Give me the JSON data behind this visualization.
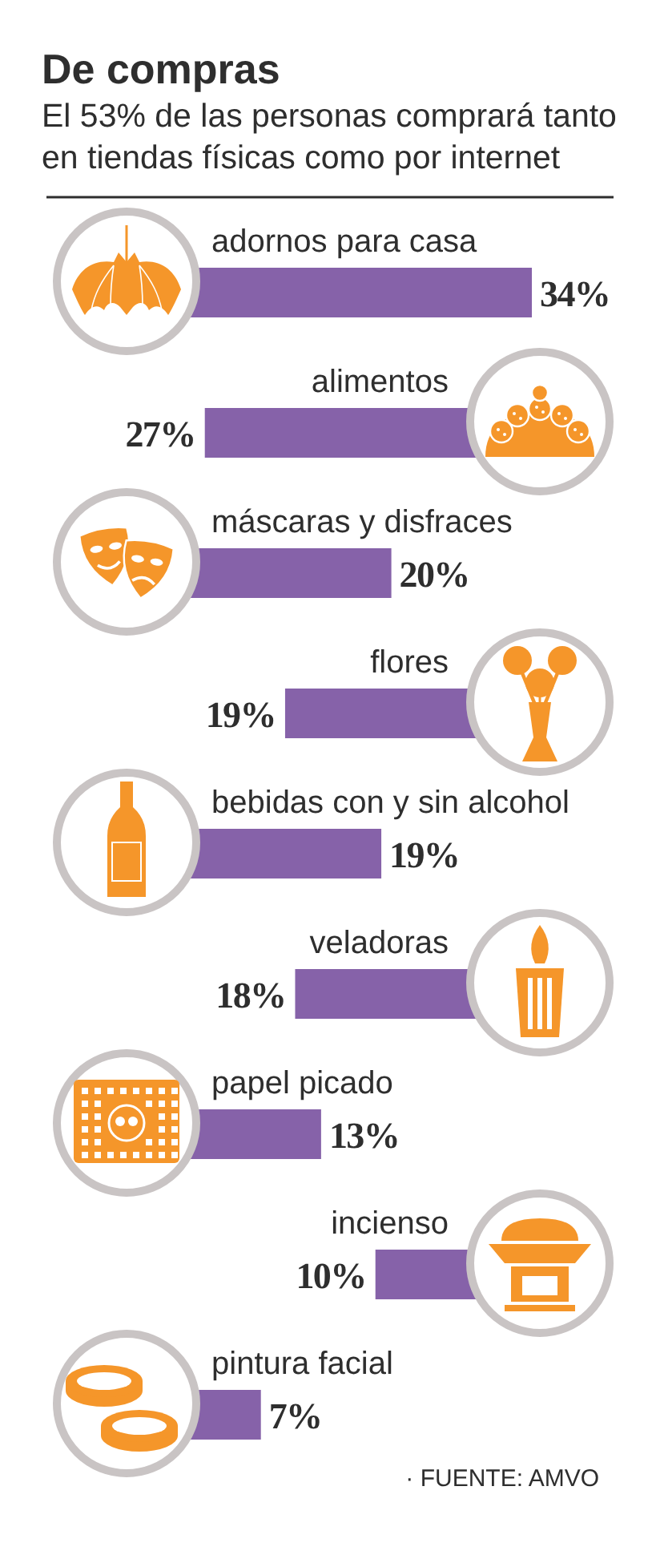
{
  "chart_data": [
    {
      "type": "bar",
      "orientation": "horizontal",
      "title": "De compras",
      "subtitle": "El 53% de las personas comprará tanto en tiendas físicas como por internet",
      "categories": [
        "adornos para casa",
        "máscaras y disfraces",
        "bebidas con y sin alcohol",
        "papel picado",
        "pintura facial"
      ],
      "values": [
        34,
        20,
        19,
        13,
        7
      ],
      "value_labels": [
        "34%",
        "20%",
        "19%",
        "13%",
        "7%"
      ],
      "color": "#8662a9",
      "annotations": [
        "· FUENTE: AMVO"
      ]
    },
    {
      "type": "bar",
      "orientation": "horizontal",
      "categories": [
        "alimentos",
        "flores",
        "veladoras",
        "incienso"
      ],
      "values": [
        27,
        19,
        18,
        10
      ],
      "value_labels": [
        "27%",
        "19%",
        "18%",
        "10%"
      ],
      "color": "#8662a9"
    }
  ]
}
